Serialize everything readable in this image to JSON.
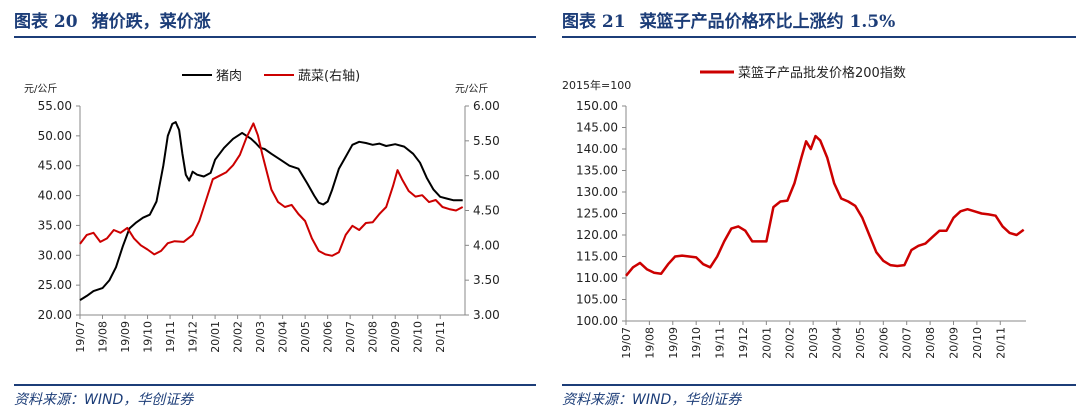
{
  "left_figure": {
    "number_label": "图表 20",
    "title": "猪价跌，菜价涨",
    "source": "资料来源：WIND，华创证券"
  },
  "right_figure": {
    "number_label": "图表 21",
    "title": "菜篮子产品价格环比上涨约 1.5%",
    "source": "资料来源：WIND，华创证券"
  },
  "chart_data": [
    {
      "type": "line",
      "title": "猪价跌，菜价涨",
      "left_unit": "元/公斤",
      "right_unit": "元/公斤",
      "x_tick_labels": [
        "19/07",
        "19/08",
        "19/09",
        "19/10",
        "19/11",
        "19/12",
        "20/01",
        "20/02",
        "20/03",
        "20/04",
        "20/05",
        "20/06",
        "20/07",
        "20/08",
        "20/09",
        "20/10",
        "20/11"
      ],
      "y_left_ticks": [
        "20.00",
        "25.00",
        "30.00",
        "35.00",
        "40.00",
        "45.00",
        "50.00",
        "55.00"
      ],
      "y_right_ticks": [
        "3.00",
        "3.50",
        "4.00",
        "4.50",
        "5.00",
        "5.50",
        "6.00"
      ],
      "ylim_left": [
        20,
        55
      ],
      "ylim_right": [
        3,
        6
      ],
      "x_range": [
        0,
        17.1
      ],
      "legend_position": "top",
      "series": [
        {
          "name": "猪肉",
          "axis": "left",
          "color": "#000000",
          "x": [
            0,
            0.3,
            0.6,
            1,
            1.3,
            1.6,
            1.9,
            2.2,
            2.5,
            2.8,
            3.1,
            3.4,
            3.7,
            3.9,
            4.1,
            4.25,
            4.4,
            4.55,
            4.7,
            4.85,
            5.0,
            5.2,
            5.5,
            5.8,
            6.0,
            6.4,
            6.8,
            7.2,
            7.6,
            7.8,
            8.0,
            8.2,
            8.5,
            8.9,
            9.3,
            9.7,
            10.1,
            10.4,
            10.6,
            10.8,
            11.0,
            11.2,
            11.5,
            11.8,
            12.1,
            12.4,
            12.7,
            13.0,
            13.3,
            13.6,
            14.0,
            14.4,
            14.8,
            15.1,
            15.4,
            15.7,
            16.0,
            16.3,
            16.6,
            17.0
          ],
          "values": [
            22.5,
            23.2,
            24,
            24.5,
            25.8,
            28,
            31.5,
            34.5,
            35.5,
            36.3,
            36.8,
            39,
            45,
            50,
            52,
            52.3,
            51,
            47,
            43.5,
            42.5,
            44,
            43.5,
            43.2,
            43.8,
            46,
            48,
            49.5,
            50.5,
            49.5,
            48.8,
            48,
            47.8,
            47,
            46,
            45,
            44.5,
            42,
            40,
            38.8,
            38.5,
            39,
            41,
            44.5,
            46.5,
            48.5,
            49,
            48.8,
            48.5,
            48.7,
            48.3,
            48.6,
            48.2,
            47,
            45.5,
            43,
            41,
            39.8,
            39.5,
            39.2,
            39.2
          ]
        },
        {
          "name": "蔬菜(右轴)",
          "axis": "right",
          "color": "#cc0000",
          "x": [
            0,
            0.3,
            0.6,
            0.9,
            1.2,
            1.5,
            1.8,
            2.1,
            2.4,
            2.7,
            3.0,
            3.3,
            3.6,
            3.9,
            4.2,
            4.6,
            5.0,
            5.3,
            5.6,
            5.9,
            6.2,
            6.5,
            6.8,
            7.1,
            7.4,
            7.7,
            7.9,
            8.1,
            8.3,
            8.5,
            8.8,
            9.1,
            9.4,
            9.7,
            10.0,
            10.3,
            10.6,
            10.9,
            11.2,
            11.5,
            11.8,
            12.1,
            12.4,
            12.7,
            13.0,
            13.3,
            13.6,
            13.9,
            14.1,
            14.3,
            14.6,
            14.9,
            15.2,
            15.5,
            15.8,
            16.1,
            16.4,
            16.7,
            17.0
          ],
          "values": [
            4.02,
            4.15,
            4.18,
            4.05,
            4.1,
            4.22,
            4.18,
            4.25,
            4.1,
            4.0,
            3.94,
            3.87,
            3.92,
            4.03,
            4.06,
            4.05,
            4.15,
            4.35,
            4.65,
            4.95,
            5.0,
            5.05,
            5.15,
            5.3,
            5.55,
            5.75,
            5.58,
            5.3,
            5.05,
            4.8,
            4.62,
            4.55,
            4.58,
            4.45,
            4.35,
            4.1,
            3.92,
            3.87,
            3.85,
            3.9,
            4.15,
            4.28,
            4.22,
            4.32,
            4.33,
            4.45,
            4.55,
            4.85,
            5.08,
            4.95,
            4.78,
            4.7,
            4.72,
            4.62,
            4.65,
            4.55,
            4.52,
            4.5,
            4.55
          ]
        }
      ]
    },
    {
      "type": "line",
      "title": "菜篮子产品价格环比上涨约 1.5%",
      "y_note": "2015年=100",
      "x_tick_labels": [
        "19/07",
        "19/08",
        "19/09",
        "19/10",
        "19/11",
        "19/12",
        "20/01",
        "20/02",
        "20/03",
        "20/04",
        "20/05",
        "20/06",
        "20/07",
        "20/08",
        "20/09",
        "20/10",
        "20/11"
      ],
      "y_ticks": [
        "100.00",
        "105.00",
        "110.00",
        "115.00",
        "120.00",
        "125.00",
        "130.00",
        "135.00",
        "140.00",
        "145.00",
        "150.00"
      ],
      "ylim": [
        100,
        150
      ],
      "x_range": [
        0,
        17.1
      ],
      "legend_position": "top",
      "series": [
        {
          "name": "菜篮子产品批发价格200指数",
          "color": "#cc0000",
          "x": [
            0,
            0.3,
            0.6,
            0.9,
            1.2,
            1.5,
            1.8,
            2.1,
            2.4,
            2.7,
            3.0,
            3.3,
            3.6,
            3.9,
            4.2,
            4.5,
            4.8,
            5.1,
            5.4,
            5.7,
            6.0,
            6.3,
            6.6,
            6.9,
            7.2,
            7.5,
            7.7,
            7.9,
            8.1,
            8.3,
            8.6,
            8.9,
            9.2,
            9.5,
            9.8,
            10.1,
            10.4,
            10.7,
            11.0,
            11.3,
            11.6,
            11.9,
            12.2,
            12.5,
            12.8,
            13.1,
            13.4,
            13.7,
            14.0,
            14.3,
            14.6,
            14.9,
            15.2,
            15.5,
            15.8,
            16.1,
            16.4,
            16.7,
            17.0
          ],
          "values": [
            110.5,
            112.5,
            113.5,
            112,
            111.2,
            111,
            113.2,
            115,
            115.2,
            115,
            114.8,
            113.2,
            112.5,
            115,
            118.5,
            121.5,
            122,
            121,
            118.5,
            118.5,
            118.5,
            126.5,
            127.8,
            128,
            132,
            138,
            141.8,
            140,
            143,
            142,
            138,
            132,
            128.5,
            127.8,
            126.8,
            124,
            120,
            116,
            114,
            113,
            112.8,
            113,
            116.5,
            117.5,
            118,
            119.5,
            121,
            121,
            124,
            125.5,
            126,
            125.5,
            125,
            124.8,
            124.5,
            122,
            120.5,
            120,
            121.2
          ]
        }
      ]
    }
  ]
}
